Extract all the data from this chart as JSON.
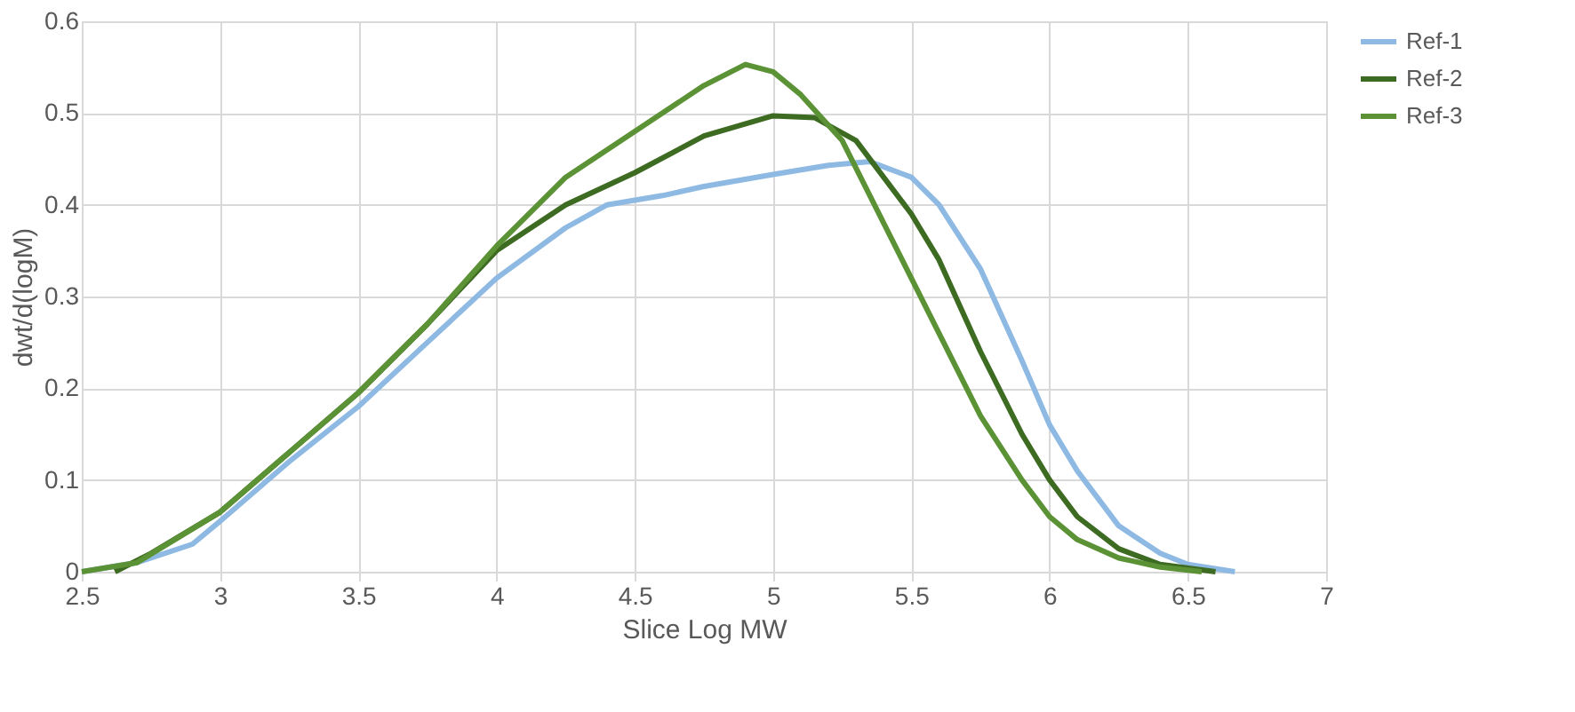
{
  "chart_data": {
    "type": "line",
    "xlabel": "Slice Log MW",
    "ylabel": "dwt/d(logM)",
    "xlim": [
      2.5,
      7
    ],
    "xticks": [
      2.5,
      3,
      3.5,
      4,
      4.5,
      5,
      5.5,
      6,
      6.5,
      7
    ],
    "ylim": [
      0,
      0.6
    ],
    "yticks": [
      0,
      0.1,
      0.2,
      0.3,
      0.4,
      0.5,
      0.6
    ],
    "grid": true,
    "legend": "right",
    "marker": "none",
    "line_style": "solid",
    "series": [
      {
        "name": "Ref-1",
        "color": "#8db9e3",
        "x": [
          2.5,
          2.7,
          2.9,
          3.0,
          3.25,
          3.5,
          3.75,
          4.0,
          4.25,
          4.4,
          4.6,
          4.75,
          5.0,
          5.2,
          5.35,
          5.5,
          5.6,
          5.75,
          5.9,
          6.0,
          6.1,
          6.25,
          6.4,
          6.5,
          6.67
        ],
        "values": [
          0,
          0.01,
          0.03,
          0.055,
          0.12,
          0.18,
          0.25,
          0.32,
          0.375,
          0.4,
          0.41,
          0.42,
          0.433,
          0.443,
          0.447,
          0.43,
          0.4,
          0.33,
          0.23,
          0.16,
          0.11,
          0.05,
          0.02,
          0.008,
          0
        ]
      },
      {
        "name": "Ref-2",
        "color": "#3d6b22",
        "x": [
          2.62,
          2.75,
          3.0,
          3.25,
          3.5,
          3.75,
          4.0,
          4.25,
          4.5,
          4.75,
          5.0,
          5.15,
          5.3,
          5.5,
          5.6,
          5.75,
          5.9,
          6.0,
          6.1,
          6.25,
          6.4,
          6.6
        ],
        "values": [
          0,
          0.02,
          0.065,
          0.13,
          0.195,
          0.27,
          0.35,
          0.4,
          0.435,
          0.475,
          0.497,
          0.495,
          0.47,
          0.39,
          0.34,
          0.24,
          0.15,
          0.1,
          0.06,
          0.025,
          0.008,
          0
        ]
      },
      {
        "name": "Ref-3",
        "color": "#5b9235",
        "x": [
          2.5,
          2.7,
          3.0,
          3.25,
          3.5,
          3.75,
          4.0,
          4.25,
          4.5,
          4.75,
          4.9,
          5.0,
          5.1,
          5.25,
          5.4,
          5.5,
          5.6,
          5.75,
          5.9,
          6.0,
          6.1,
          6.25,
          6.4,
          6.55
        ],
        "values": [
          0,
          0.01,
          0.065,
          0.13,
          0.195,
          0.27,
          0.355,
          0.43,
          0.48,
          0.53,
          0.553,
          0.545,
          0.52,
          0.47,
          0.38,
          0.32,
          0.26,
          0.17,
          0.1,
          0.06,
          0.035,
          0.015,
          0.005,
          0
        ]
      }
    ]
  }
}
